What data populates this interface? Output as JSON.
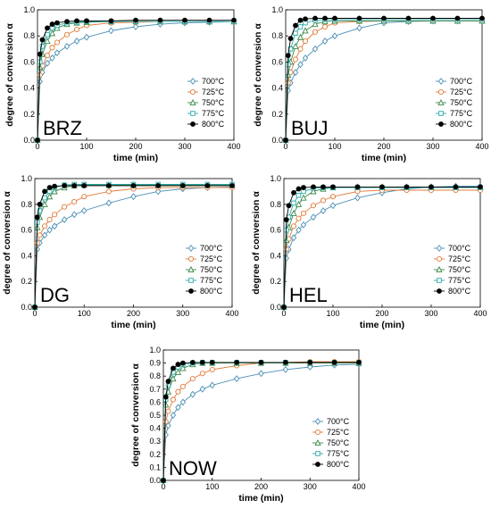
{
  "figure": {
    "legend_position": "bottom-right",
    "series_meta": [
      {
        "name": "700°C",
        "color": "#4a8fb5",
        "marker": "diamond-open"
      },
      {
        "name": "725°C",
        "color": "#e07b39",
        "marker": "circle-open"
      },
      {
        "name": "750°C",
        "color": "#3a8a4a",
        "marker": "triangle-open"
      },
      {
        "name": "775°C",
        "color": "#2aa9a9",
        "marker": "square-open"
      },
      {
        "name": "800°C",
        "color": "#000000",
        "marker": "circle-filled"
      }
    ]
  },
  "chart_data": [
    {
      "type": "line",
      "panel_label": "BRZ",
      "xlabel": "time (min)",
      "ylabel": "degree of conversion α",
      "xlim": [
        0,
        400
      ],
      "ylim": [
        0,
        1
      ],
      "xticks": [
        0,
        100,
        200,
        300,
        400
      ],
      "yticks": [
        0.0,
        0.2,
        0.4,
        0.6,
        0.8,
        1.0
      ],
      "xtick_labels": [
        "0",
        "100",
        "200",
        "300",
        "400"
      ],
      "ytick_labels": [
        "0.0",
        "0.2",
        "0.4",
        "0.6",
        "0.8",
        "1.0"
      ],
      "grid": false,
      "legend": "bottom-right",
      "series": [
        {
          "name": "700°C",
          "x": [
            0,
            5,
            10,
            20,
            30,
            40,
            60,
            80,
            100,
            150,
            200,
            250,
            300,
            350,
            400
          ],
          "y": [
            0,
            0.45,
            0.52,
            0.59,
            0.63,
            0.67,
            0.72,
            0.76,
            0.79,
            0.84,
            0.87,
            0.89,
            0.9,
            0.905,
            0.91
          ]
        },
        {
          "name": "725°C",
          "x": [
            0,
            5,
            10,
            20,
            30,
            40,
            60,
            80,
            100,
            150,
            200,
            250,
            300,
            350,
            400
          ],
          "y": [
            0,
            0.5,
            0.57,
            0.65,
            0.71,
            0.75,
            0.81,
            0.85,
            0.88,
            0.9,
            0.905,
            0.91,
            0.91,
            0.91,
            0.91
          ]
        },
        {
          "name": "750°C",
          "x": [
            0,
            5,
            10,
            20,
            30,
            40,
            60,
            80,
            100,
            150,
            200,
            250,
            300,
            350,
            400
          ],
          "y": [
            0,
            0.56,
            0.66,
            0.76,
            0.82,
            0.86,
            0.89,
            0.9,
            0.905,
            0.91,
            0.91,
            0.91,
            0.91,
            0.91,
            0.91
          ]
        },
        {
          "name": "775°C",
          "x": [
            0,
            5,
            10,
            20,
            30,
            40,
            60,
            80,
            100,
            150,
            200,
            250,
            300,
            350,
            400
          ],
          "y": [
            0,
            0.6,
            0.72,
            0.81,
            0.86,
            0.88,
            0.9,
            0.905,
            0.91,
            0.91,
            0.91,
            0.91,
            0.91,
            0.91,
            0.91
          ]
        },
        {
          "name": "800°C",
          "x": [
            0,
            5,
            10,
            20,
            30,
            40,
            60,
            80,
            100,
            150,
            200,
            250,
            300,
            350,
            400
          ],
          "y": [
            0,
            0.66,
            0.77,
            0.86,
            0.89,
            0.9,
            0.91,
            0.915,
            0.915,
            0.915,
            0.92,
            0.92,
            0.92,
            0.92,
            0.92
          ]
        }
      ]
    },
    {
      "type": "line",
      "panel_label": "BUJ",
      "xlabel": "time (min)",
      "ylabel": "degree of conversion α",
      "xlim": [
        0,
        400
      ],
      "ylim": [
        0,
        1
      ],
      "xticks": [
        0,
        100,
        200,
        300,
        400
      ],
      "yticks": [
        0.0,
        0.2,
        0.4,
        0.6,
        0.8,
        1.0
      ],
      "xtick_labels": [
        "0",
        "100",
        "200",
        "300",
        "400"
      ],
      "ytick_labels": [
        "0.0",
        "0.2",
        "0.4",
        "0.6",
        "0.8",
        "1.0"
      ],
      "grid": false,
      "legend": "bottom-right",
      "series": [
        {
          "name": "700°C",
          "x": [
            0,
            5,
            10,
            20,
            30,
            40,
            60,
            80,
            100,
            150,
            200,
            250,
            300,
            350,
            400
          ],
          "y": [
            0,
            0.38,
            0.44,
            0.52,
            0.58,
            0.63,
            0.7,
            0.76,
            0.8,
            0.86,
            0.9,
            0.91,
            0.915,
            0.915,
            0.915
          ]
        },
        {
          "name": "725°C",
          "x": [
            0,
            5,
            10,
            20,
            30,
            40,
            60,
            80,
            100,
            150,
            200,
            250,
            300,
            350,
            400
          ],
          "y": [
            0,
            0.44,
            0.52,
            0.62,
            0.7,
            0.76,
            0.83,
            0.87,
            0.9,
            0.91,
            0.915,
            0.915,
            0.915,
            0.915,
            0.915
          ]
        },
        {
          "name": "750°C",
          "x": [
            0,
            5,
            10,
            20,
            30,
            40,
            60,
            80,
            100,
            150,
            200,
            250,
            300,
            350,
            400
          ],
          "y": [
            0,
            0.5,
            0.6,
            0.72,
            0.79,
            0.84,
            0.89,
            0.91,
            0.915,
            0.915,
            0.915,
            0.915,
            0.915,
            0.915,
            0.915
          ]
        },
        {
          "name": "775°C",
          "x": [
            0,
            5,
            10,
            20,
            30,
            40,
            60,
            80,
            100,
            150,
            200,
            250,
            300,
            350,
            400
          ],
          "y": [
            0,
            0.58,
            0.7,
            0.82,
            0.87,
            0.9,
            0.92,
            0.925,
            0.925,
            0.925,
            0.925,
            0.925,
            0.925,
            0.925,
            0.925
          ]
        },
        {
          "name": "800°C",
          "x": [
            0,
            5,
            10,
            20,
            30,
            40,
            60,
            80,
            100,
            150,
            200,
            250,
            300,
            350,
            400
          ],
          "y": [
            0,
            0.65,
            0.78,
            0.88,
            0.92,
            0.93,
            0.935,
            0.935,
            0.935,
            0.935,
            0.935,
            0.935,
            0.935,
            0.935,
            0.935
          ]
        }
      ]
    },
    {
      "type": "line",
      "panel_label": "DG",
      "xlabel": "time (min)",
      "ylabel": "degree of conversion α",
      "xlim": [
        0,
        400
      ],
      "ylim": [
        0,
        1
      ],
      "xticks": [
        0,
        100,
        200,
        300,
        400
      ],
      "yticks": [
        0.0,
        0.2,
        0.4,
        0.6,
        0.8,
        1.0
      ],
      "xtick_labels": [
        "0",
        "100",
        "200",
        "300",
        "400"
      ],
      "ytick_labels": [
        "0.0",
        "0.2",
        "0.4",
        "0.6",
        "0.8",
        "1.0"
      ],
      "grid": false,
      "legend": "bottom-right",
      "series": [
        {
          "name": "700°C",
          "x": [
            0,
            5,
            10,
            20,
            30,
            40,
            60,
            80,
            100,
            150,
            200,
            250,
            300,
            350,
            400
          ],
          "y": [
            0,
            0.45,
            0.5,
            0.56,
            0.6,
            0.63,
            0.68,
            0.72,
            0.75,
            0.81,
            0.86,
            0.9,
            0.92,
            0.93,
            0.935
          ]
        },
        {
          "name": "725°C",
          "x": [
            0,
            5,
            10,
            20,
            30,
            40,
            60,
            80,
            100,
            150,
            200,
            250,
            300,
            350,
            400
          ],
          "y": [
            0,
            0.5,
            0.56,
            0.63,
            0.68,
            0.72,
            0.78,
            0.82,
            0.86,
            0.9,
            0.92,
            0.93,
            0.93,
            0.93,
            0.93
          ]
        },
        {
          "name": "750°C",
          "x": [
            0,
            5,
            10,
            20,
            30,
            40,
            60,
            80,
            100,
            150,
            200,
            250,
            300,
            350,
            400
          ],
          "y": [
            0,
            0.62,
            0.7,
            0.8,
            0.86,
            0.9,
            0.93,
            0.945,
            0.95,
            0.95,
            0.95,
            0.95,
            0.95,
            0.95,
            0.95
          ]
        },
        {
          "name": "775°C",
          "x": [
            0,
            5,
            10,
            20,
            30,
            40,
            60,
            80,
            100,
            150,
            200,
            250,
            300,
            350,
            400
          ],
          "y": [
            0,
            0.66,
            0.75,
            0.85,
            0.9,
            0.93,
            0.95,
            0.955,
            0.955,
            0.955,
            0.955,
            0.955,
            0.955,
            0.955,
            0.955
          ]
        },
        {
          "name": "800°C",
          "x": [
            0,
            5,
            10,
            20,
            30,
            40,
            60,
            80,
            100,
            150,
            200,
            250,
            300,
            350,
            400
          ],
          "y": [
            0,
            0.7,
            0.8,
            0.9,
            0.93,
            0.94,
            0.945,
            0.945,
            0.945,
            0.945,
            0.945,
            0.945,
            0.945,
            0.945,
            0.945
          ]
        }
      ]
    },
    {
      "type": "line",
      "panel_label": "HEL",
      "xlabel": "time (min)",
      "ylabel": "degree of conversion α",
      "xlim": [
        0,
        400
      ],
      "ylim": [
        0,
        1
      ],
      "xticks": [
        0,
        100,
        200,
        300,
        400
      ],
      "yticks": [
        0.0,
        0.2,
        0.4,
        0.6,
        0.8,
        1.0
      ],
      "xtick_labels": [
        "0",
        "100",
        "200",
        "300",
        "400"
      ],
      "ytick_labels": [
        "0.0",
        "0.2",
        "0.4",
        "0.6",
        "0.8",
        "1.0"
      ],
      "grid": false,
      "legend": "bottom-right",
      "series": [
        {
          "name": "700°C",
          "x": [
            0,
            5,
            10,
            20,
            30,
            40,
            60,
            80,
            100,
            150,
            200,
            250,
            300,
            350,
            400
          ],
          "y": [
            0,
            0.38,
            0.45,
            0.54,
            0.6,
            0.64,
            0.7,
            0.75,
            0.79,
            0.85,
            0.89,
            0.92,
            0.935,
            0.94,
            0.94
          ]
        },
        {
          "name": "725°C",
          "x": [
            0,
            5,
            10,
            20,
            30,
            40,
            60,
            80,
            100,
            150,
            200,
            250,
            300,
            350,
            400
          ],
          "y": [
            0,
            0.45,
            0.53,
            0.63,
            0.69,
            0.73,
            0.79,
            0.83,
            0.86,
            0.9,
            0.91,
            0.91,
            0.91,
            0.91,
            0.91
          ]
        },
        {
          "name": "750°C",
          "x": [
            0,
            5,
            10,
            20,
            30,
            40,
            60,
            80,
            100,
            150,
            200,
            250,
            300,
            350,
            400
          ],
          "y": [
            0,
            0.52,
            0.62,
            0.73,
            0.8,
            0.85,
            0.9,
            0.92,
            0.93,
            0.935,
            0.935,
            0.935,
            0.935,
            0.935,
            0.935
          ]
        },
        {
          "name": "775°C",
          "x": [
            0,
            5,
            10,
            20,
            30,
            40,
            60,
            80,
            100,
            150,
            200,
            250,
            300,
            350,
            400
          ],
          "y": [
            0,
            0.6,
            0.7,
            0.81,
            0.87,
            0.9,
            0.925,
            0.93,
            0.93,
            0.93,
            0.93,
            0.93,
            0.93,
            0.93,
            0.93
          ]
        },
        {
          "name": "800°C",
          "x": [
            0,
            5,
            10,
            20,
            30,
            40,
            60,
            80,
            100,
            150,
            200,
            250,
            300,
            350,
            400
          ],
          "y": [
            0,
            0.68,
            0.79,
            0.89,
            0.92,
            0.93,
            0.935,
            0.935,
            0.935,
            0.935,
            0.935,
            0.935,
            0.935,
            0.935,
            0.935
          ]
        }
      ]
    },
    {
      "type": "line",
      "panel_label": "NOW",
      "xlabel": "time (min)",
      "ylabel": "degree of conversion α",
      "xlim": [
        0,
        400
      ],
      "ylim": [
        0,
        1
      ],
      "xticks": [
        0,
        100,
        200,
        300,
        400
      ],
      "yticks": [
        0.0,
        0.1,
        0.2,
        0.3,
        0.4,
        0.5,
        0.6,
        0.7,
        0.8,
        0.9,
        1.0
      ],
      "xtick_labels": [
        "0",
        "100",
        "200",
        "300",
        "400"
      ],
      "ytick_labels": [
        "0.0",
        "0.1",
        "0.2",
        "0.3",
        "0.4",
        "0.5",
        "0.6",
        "0.7",
        "0.8",
        "0.9",
        "1.0"
      ],
      "grid": false,
      "legend": "bottom-right",
      "series": [
        {
          "name": "700°C",
          "x": [
            0,
            5,
            10,
            20,
            30,
            40,
            60,
            80,
            100,
            150,
            200,
            250,
            300,
            350,
            400
          ],
          "y": [
            0,
            0.35,
            0.42,
            0.5,
            0.56,
            0.6,
            0.66,
            0.7,
            0.73,
            0.78,
            0.82,
            0.85,
            0.87,
            0.885,
            0.89
          ]
        },
        {
          "name": "725°C",
          "x": [
            0,
            5,
            10,
            20,
            30,
            40,
            60,
            80,
            100,
            150,
            200,
            250,
            300,
            350,
            400
          ],
          "y": [
            0,
            0.45,
            0.53,
            0.62,
            0.68,
            0.72,
            0.78,
            0.82,
            0.85,
            0.88,
            0.9,
            0.905,
            0.91,
            0.91,
            0.91
          ]
        },
        {
          "name": "750°C",
          "x": [
            0,
            5,
            10,
            20,
            30,
            40,
            60,
            80,
            100,
            150,
            200,
            250,
            300,
            350,
            400
          ],
          "y": [
            0,
            0.58,
            0.68,
            0.78,
            0.83,
            0.86,
            0.89,
            0.9,
            0.9,
            0.9,
            0.9,
            0.9,
            0.9,
            0.9,
            0.9
          ]
        },
        {
          "name": "775°C",
          "x": [
            0,
            5,
            10,
            20,
            30,
            40,
            60,
            80,
            100,
            150,
            200,
            250,
            300,
            350,
            400
          ],
          "y": [
            0,
            0.62,
            0.73,
            0.83,
            0.87,
            0.89,
            0.9,
            0.905,
            0.905,
            0.905,
            0.905,
            0.905,
            0.905,
            0.905,
            0.905
          ]
        },
        {
          "name": "800°C",
          "x": [
            0,
            5,
            10,
            20,
            30,
            40,
            60,
            80,
            100,
            150,
            200,
            250,
            300,
            350,
            400
          ],
          "y": [
            0,
            0.64,
            0.76,
            0.86,
            0.89,
            0.9,
            0.905,
            0.905,
            0.905,
            0.905,
            0.905,
            0.905,
            0.905,
            0.905,
            0.905
          ]
        }
      ]
    }
  ]
}
